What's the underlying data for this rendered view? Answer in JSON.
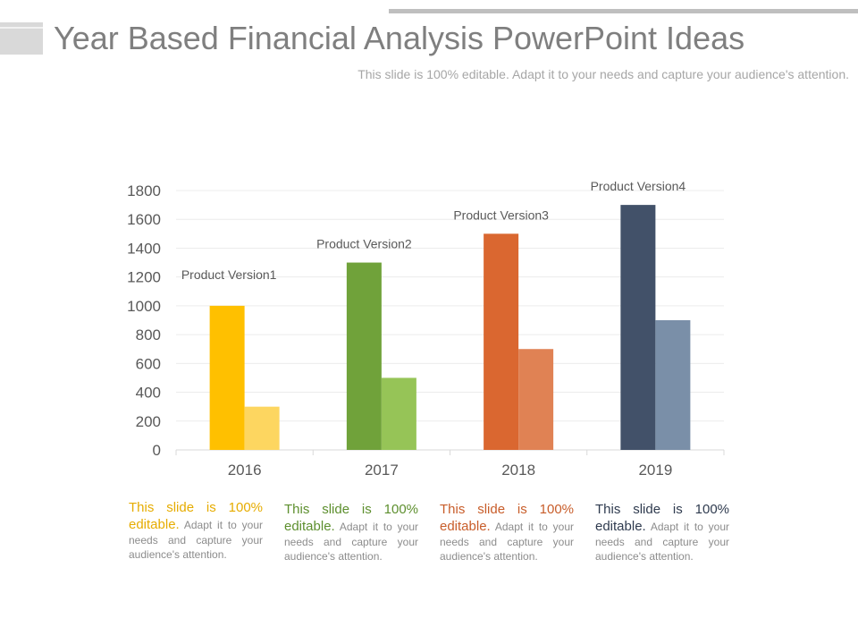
{
  "header": {
    "title": "Year Based Financial Analysis PowerPoint Ideas",
    "subtitle": "This slide is 100% editable. Adapt it to your needs and capture your audience's attention."
  },
  "chart_data": {
    "type": "bar",
    "categories": [
      "2016",
      "2017",
      "2018",
      "2019"
    ],
    "series": [
      {
        "values": [
          1000,
          1300,
          1500,
          1700
        ]
      },
      {
        "values": [
          300,
          500,
          700,
          900
        ]
      }
    ],
    "bar_labels": [
      "Product Version1",
      "Product Version2",
      "Product Version3",
      "Product Version4"
    ],
    "y_ticks": [
      0,
      200,
      400,
      600,
      800,
      1000,
      1200,
      1400,
      1600,
      1800
    ],
    "ylim": [
      0,
      1800
    ],
    "grid": true,
    "colors": {
      "primary": [
        "#ffc000",
        "#70a23a",
        "#da6730",
        "#425169"
      ],
      "secondary": [
        "#fdd660",
        "#96c457",
        "#e08254",
        "#7a8fa8"
      ]
    },
    "title": "",
    "xlabel": "",
    "ylabel": ""
  },
  "descriptions": [
    {
      "lead": "This slide is 100% editable.",
      "rest": " Adapt it to your needs and capture your audience's attention.",
      "color": "#e6ac00"
    },
    {
      "lead": "This slide is 100% editable.",
      "rest": " Adapt it to your needs and capture your audience's attention.",
      "color": "#5d8f2e"
    },
    {
      "lead": "This slide is 100% editable.",
      "rest": " Adapt it to your needs and capture your audience's attention.",
      "color": "#c85d2a"
    },
    {
      "lead": "This slide is 100% editable.",
      "rest": " Adapt it to your needs and capture your audience's attention.",
      "color": "#2f3b4f"
    }
  ]
}
